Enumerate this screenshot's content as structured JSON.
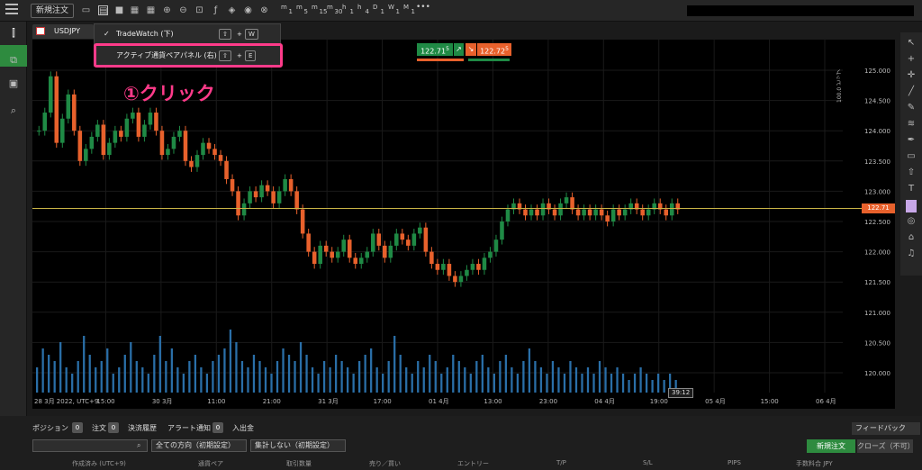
{
  "toolbar": {
    "new_order": "新規注文",
    "timeframes": [
      "m",
      "1",
      "m",
      "5",
      "m",
      "15",
      "m",
      "30",
      "h",
      "1",
      "h",
      "4",
      "D",
      "1",
      "W",
      "1",
      "M",
      "1"
    ],
    "more": "•••"
  },
  "chart_tab": {
    "symbol": "USDJPY"
  },
  "dropdown": {
    "item1_label": "TradeWatch (下)",
    "item1_keys": [
      "⇧",
      "W"
    ],
    "item2_label": "アクティブ通貨ペアパネル (右)",
    "item2_keys": [
      "⇧",
      "E"
    ],
    "plus": "+"
  },
  "annotation": "①クリック",
  "quote": {
    "sell": "122.71",
    "sell_sup": "5",
    "buy": "122.72",
    "buy_sup": "5",
    "sell_color": "#1f8a45",
    "buy_color": "#e8612c"
  },
  "current_price_label": "122.71",
  "pip_scale": "100.0 ピップ",
  "countdown": "39:12",
  "chart_data": {
    "type": "candlestick",
    "y_ticks": [
      "125.000",
      "124.500",
      "124.000",
      "123.500",
      "123.000",
      "122.500",
      "122.000",
      "121.500",
      "121.000",
      "120.500",
      "120.000"
    ],
    "x_ticks": [
      "28 3月 2022, UTC+9",
      "15:00",
      "30 3月",
      "11:00",
      "21:00",
      "31 3月",
      "17:00",
      "01 4月",
      "13:00",
      "23:00",
      "04 4月",
      "19:00",
      "05 4月",
      "15:00",
      "06 4月"
    ],
    "current_price": 122.715,
    "up_color": "#1f8a45",
    "down_color": "#e8612c",
    "volume_color": "#2a6fa8",
    "closes": [
      124.0,
      124.3,
      124.9,
      123.8,
      124.2,
      124.6,
      124.0,
      123.5,
      123.7,
      123.9,
      124.1,
      123.6,
      123.8,
      124.0,
      123.9,
      124.2,
      124.3,
      123.9,
      124.1,
      124.3,
      124.0,
      123.6,
      123.7,
      123.9,
      124.0,
      123.5,
      123.4,
      123.6,
      123.8,
      123.7,
      123.6,
      123.5,
      123.2,
      123.0,
      122.6,
      122.8,
      123.0,
      122.9,
      123.1,
      123.0,
      122.8,
      123.0,
      123.2,
      123.0,
      122.7,
      122.3,
      122.0,
      121.8,
      122.1,
      122.0,
      121.9,
      122.0,
      122.2,
      121.9,
      121.8,
      121.9,
      122.0,
      122.3,
      122.1,
      121.9,
      122.1,
      122.3,
      122.2,
      122.1,
      122.3,
      122.4,
      122.0,
      121.8,
      121.7,
      121.8,
      121.6,
      121.5,
      121.6,
      121.7,
      121.8,
      121.7,
      121.9,
      122.0,
      122.2,
      122.5,
      122.7,
      122.8,
      122.7,
      122.6,
      122.7,
      122.6,
      122.8,
      122.7,
      122.6,
      122.8,
      122.9,
      122.7,
      122.6,
      122.7,
      122.6,
      122.7,
      122.6,
      122.5,
      122.7,
      122.6,
      122.7,
      122.8,
      122.7,
      122.6,
      122.7,
      122.8,
      122.7,
      122.6,
      122.8,
      122.7
    ],
    "volumes": [
      0.4,
      0.7,
      0.6,
      0.5,
      0.8,
      0.4,
      0.3,
      0.5,
      0.9,
      0.6,
      0.4,
      0.5,
      0.7,
      0.3,
      0.4,
      0.6,
      0.8,
      0.5,
      0.4,
      0.3,
      0.6,
      0.9,
      0.5,
      0.7,
      0.4,
      0.3,
      0.5,
      0.6,
      0.4,
      0.3,
      0.5,
      0.6,
      0.7,
      1.0,
      0.8,
      0.5,
      0.4,
      0.6,
      0.5,
      0.4,
      0.3,
      0.5,
      0.7,
      0.6,
      0.5,
      0.8,
      0.6,
      0.4,
      0.3,
      0.5,
      0.4,
      0.6,
      0.5,
      0.4,
      0.3,
      0.5,
      0.6,
      0.7,
      0.4,
      0.3,
      0.5,
      0.9,
      0.6,
      0.4,
      0.3,
      0.5,
      0.4,
      0.6,
      0.5,
      0.3,
      0.4,
      0.6,
      0.5,
      0.4,
      0.3,
      0.5,
      0.6,
      0.4,
      0.3,
      0.5,
      0.6,
      0.4,
      0.3,
      0.5,
      0.7,
      0.5,
      0.4,
      0.3,
      0.5,
      0.4,
      0.3,
      0.5,
      0.4,
      0.3,
      0.4,
      0.3,
      0.5,
      0.4,
      0.3,
      0.4,
      0.3,
      0.2,
      0.3,
      0.4,
      0.3,
      0.2,
      0.3,
      0.2,
      0.3,
      0.2
    ]
  },
  "bottom": {
    "tabs": [
      {
        "label": "ポジション",
        "count": "0"
      },
      {
        "label": "注文",
        "count": "0"
      },
      {
        "label": "決済履歴",
        "count": ""
      },
      {
        "label": "アラート通知",
        "count": "0"
      },
      {
        "label": "入出金",
        "count": ""
      }
    ],
    "feedback": "フィードバック",
    "filter_direction": "全ての方向（初期設定）",
    "filter_aggregate": "集計しない（初期設定）",
    "new_order": "新規注文",
    "close": "クローズ（不可）",
    "columns": [
      "作成済み (UTC+9)",
      "通貨ペア",
      "取引数量",
      "売り／買い",
      "エントリー",
      "T/P",
      "S/L",
      "PIPS",
      "手数料合 JPY"
    ]
  }
}
